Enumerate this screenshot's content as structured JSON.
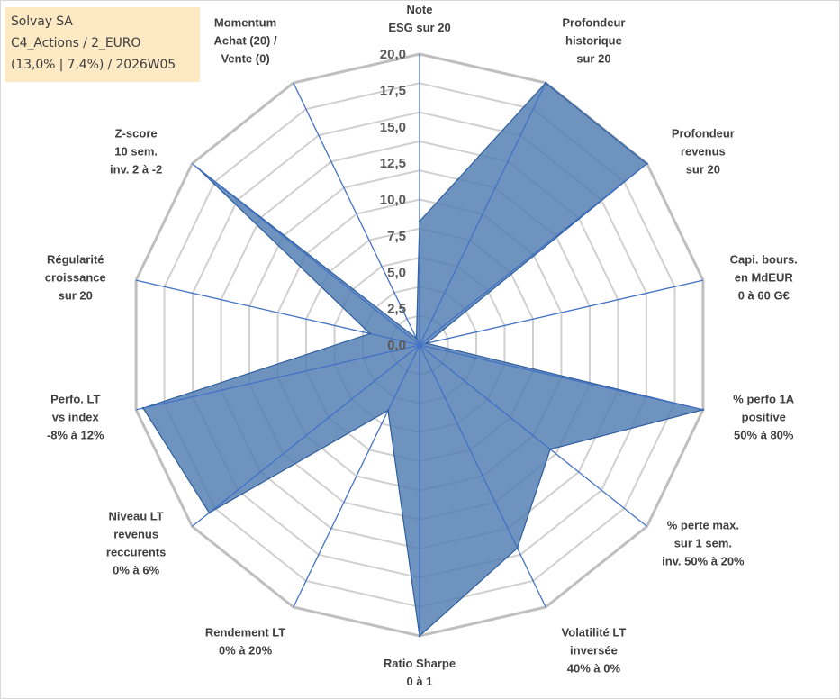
{
  "info": {
    "line1": "Solvay SA",
    "line2": "C4_Actions / 2_EURO",
    "line3": "(13,0% | 7,4%) / 2026W05"
  },
  "chart_data": {
    "type": "radar",
    "title": "",
    "rmin": 0,
    "rmax": 20,
    "ticks": [
      "0,0",
      "2,5",
      "5,0",
      "7,5",
      "10,0",
      "12,5",
      "15,0",
      "17,5",
      "20,0"
    ],
    "gridlines": 10,
    "colors": {
      "fill": "#4f7bb1",
      "stroke": "#2f5f9e",
      "grid": "#c0c0c0",
      "spoke": "#4472c4"
    },
    "axes": [
      [
        "Note",
        "ESG sur 20"
      ],
      [
        "Profondeur",
        "historique",
        "sur 20"
      ],
      [
        "Profondeur",
        "revenus",
        "sur 20"
      ],
      [
        "Capi. bours.",
        "en MdEUR",
        "0 à 60 G€"
      ],
      [
        "% perfo 1A",
        "positive",
        "50% à 80%"
      ],
      [
        "% perte max.",
        "sur 1 sem.",
        "inv. 50% à 20%"
      ],
      [
        "Volatilité LT",
        "inversée",
        "40% à 0%"
      ],
      [
        "Ratio Sharpe",
        "0 à 1"
      ],
      [
        "Rendement LT",
        "0% à 20%"
      ],
      [
        "Niveau LT",
        "revenus",
        "reccurents",
        "0% à 6%"
      ],
      [
        "Perfo. LT",
        "vs index",
        "-8% à 12%"
      ],
      [
        "Régularité",
        "croissance",
        "sur 20"
      ],
      [
        "Z-score",
        "10 sem.",
        "inv. 2 à -2"
      ],
      [
        "Momentum",
        "Achat (20) /",
        "Vente (0)"
      ]
    ],
    "series": [
      {
        "values": [
          8.5,
          20,
          20,
          0.5,
          20,
          11.5,
          15.5,
          20,
          5,
          18.5,
          19.5,
          3.5,
          19.5,
          0.5
        ]
      }
    ]
  }
}
